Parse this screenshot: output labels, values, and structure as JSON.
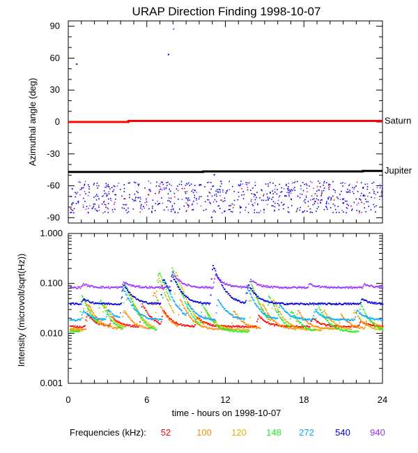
{
  "title": "URAP Direction Finding  1998-10-07",
  "xlabel": "time - hours on 1998-10-07",
  "legend_prefix": "Frequencies (kHz):",
  "chart_data": [
    {
      "type": "scatter",
      "ylabel": "Azimuthal angle (deg)",
      "xlim": [
        0,
        24
      ],
      "ylim": [
        -95,
        95
      ],
      "yticks": [
        90,
        60,
        30,
        0,
        -30,
        -60,
        -90
      ],
      "xticks": [
        0,
        6,
        12,
        18,
        24
      ],
      "grid": false,
      "reference_lines": [
        {
          "label": "Saturn",
          "color": "#ff0000",
          "points": [
            [
              0,
              0
            ],
            [
              4.6,
              0
            ],
            [
              4.6,
              1
            ],
            [
              24,
              1
            ]
          ]
        },
        {
          "label": "Jupiter",
          "color": "#000000",
          "points": [
            [
              0,
              -47
            ],
            [
              10.3,
              -47
            ],
            [
              10.3,
              -46.5
            ],
            [
              22.5,
              -46.5
            ],
            [
              22.5,
              -46
            ],
            [
              24,
              -46
            ]
          ]
        }
      ],
      "scatter_band": {
        "y_range": [
          -85,
          -55
        ],
        "x_range": [
          0.1,
          24
        ],
        "colors": [
          "#0000dd",
          "#9b30ff",
          "#ff0000"
        ]
      },
      "outliers": [
        {
          "x": 0.6,
          "y": 55,
          "color": "#0000dd"
        },
        {
          "x": 7.6,
          "y": 64,
          "color": "#0000dd"
        },
        {
          "x": 8.0,
          "y": 88,
          "color": "#9b30ff"
        },
        {
          "x": 11.1,
          "y": -49,
          "color": "#0000dd"
        },
        {
          "x": 10.9,
          "y": -89,
          "color": "#0000dd"
        }
      ]
    },
    {
      "type": "scatter",
      "ylabel": "Intensity (microvolt/sqrt(Hz))",
      "yscale": "log",
      "xlim": [
        0,
        24
      ],
      "ylim": [
        0.001,
        1.0
      ],
      "yticks": [
        1.0,
        0.1,
        0.01,
        0.001
      ],
      "ytick_labels": [
        "1.000",
        "0.100",
        "0.010",
        "0.001"
      ],
      "xticks": [
        0,
        6,
        12,
        18,
        24
      ],
      "xtick_labels": [
        "0",
        "6",
        "12",
        "18",
        "24"
      ],
      "grid": false,
      "series": [
        {
          "name": "52",
          "color": "#ff0000",
          "baseline": 0.014,
          "peaks": [
            [
              1.4,
              0.025
            ],
            [
              3.3,
              0.022
            ],
            [
              5.6,
              0.04
            ],
            [
              7.2,
              0.03
            ],
            [
              9.8,
              0.022
            ],
            [
              14.5,
              0.024
            ],
            [
              18.6,
              0.021
            ],
            [
              22.3,
              0.018
            ]
          ]
        },
        {
          "name": "100",
          "color": "#ff8c00",
          "baseline": 0.0125,
          "peaks": [
            [
              1.5,
              0.04
            ],
            [
              4.2,
              0.03
            ],
            [
              6.5,
              0.07
            ],
            [
              8.5,
              0.05
            ],
            [
              12.6,
              0.03
            ],
            [
              14.8,
              0.04
            ],
            [
              17.5,
              0.03
            ],
            [
              20.8,
              0.025
            ],
            [
              22.8,
              0.022
            ]
          ]
        },
        {
          "name": "120",
          "color": "#e0b000",
          "baseline": 0.012,
          "peaks": [
            [
              1.2,
              0.05
            ],
            [
              2.7,
              0.04
            ],
            [
              4.5,
              0.08
            ],
            [
              6.8,
              0.15
            ],
            [
              8.2,
              0.17
            ],
            [
              10.5,
              0.03
            ],
            [
              14.0,
              0.09
            ],
            [
              15.6,
              0.05
            ],
            [
              19.5,
              0.03
            ],
            [
              21.8,
              0.03
            ]
          ]
        },
        {
          "name": "148",
          "color": "#22ee22",
          "baseline": 0.011,
          "peaks": [
            [
              1.0,
              0.06
            ],
            [
              2.4,
              0.05
            ],
            [
              4.3,
              0.1
            ],
            [
              6.9,
              0.18
            ],
            [
              7.9,
              0.21
            ],
            [
              10.2,
              0.04
            ],
            [
              13.9,
              0.11
            ],
            [
              15.3,
              0.06
            ],
            [
              17.0,
              0.03
            ],
            [
              19.0,
              0.04
            ],
            [
              22.3,
              0.04
            ]
          ]
        },
        {
          "name": "272",
          "color": "#00aaff",
          "baseline": 0.019,
          "peaks": [
            [
              1.1,
              0.03
            ],
            [
              3.0,
              0.03
            ],
            [
              4.1,
              0.09
            ],
            [
              7.3,
              0.12
            ],
            [
              9.1,
              0.04
            ],
            [
              11.4,
              0.05
            ],
            [
              13.6,
              0.09
            ],
            [
              16.1,
              0.04
            ],
            [
              18.8,
              0.03
            ],
            [
              22.0,
              0.03
            ]
          ]
        },
        {
          "name": "540",
          "color": "#0000dd",
          "baseline": 0.04,
          "peaks": [
            [
              1.1,
              0.05
            ],
            [
              4.2,
              0.1
            ],
            [
              7.2,
              0.13
            ],
            [
              7.9,
              0.15
            ],
            [
              11.0,
              0.24
            ],
            [
              13.7,
              0.1
            ],
            [
              22.4,
              0.05
            ]
          ]
        },
        {
          "name": "940",
          "color": "#9b30ff",
          "baseline": 0.085,
          "peaks": [
            [
              1.1,
              0.1
            ],
            [
              4.2,
              0.11
            ],
            [
              7.9,
              0.17
            ],
            [
              11.2,
              0.15
            ],
            [
              13.9,
              0.12
            ],
            [
              18.4,
              0.1
            ],
            [
              22.6,
              0.1
            ]
          ]
        }
      ]
    }
  ]
}
